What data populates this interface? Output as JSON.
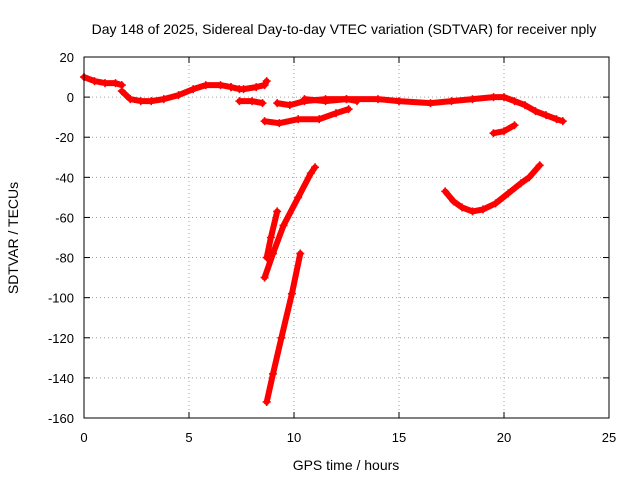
{
  "chart_data": {
    "type": "scatter",
    "title": "Day 148 of 2025, Sidereal Day-to-day VTEC variation (SDTVAR) for receiver nply",
    "xlabel": "GPS time / hours",
    "ylabel": "SDTVAR / TECUs",
    "xlim": [
      0,
      25
    ],
    "ylim": [
      -160,
      20
    ],
    "xticks": [
      0,
      5,
      10,
      15,
      20,
      25
    ],
    "yticks": [
      20,
      0,
      -20,
      -40,
      -60,
      -80,
      -100,
      -120,
      -140,
      -160
    ],
    "grid": true,
    "series_color": "#ff0000",
    "segments": [
      {
        "x": [
          0,
          0.5,
          1.0,
          1.5,
          1.8
        ],
        "y": [
          10,
          8,
          7,
          7,
          6
        ]
      },
      {
        "x": [
          1.8,
          2.2,
          2.7,
          3.2,
          3.8,
          4.5,
          5.2,
          5.8,
          6.5,
          7.0
        ],
        "y": [
          3,
          -1,
          -2,
          -2,
          -1,
          1,
          4,
          6,
          6,
          5
        ]
      },
      {
        "x": [
          7.0,
          7.4,
          7.6,
          8.2,
          8.6,
          8.7
        ],
        "y": [
          5,
          4,
          4,
          5,
          6,
          8
        ]
      },
      {
        "x": [
          7.4,
          8.0,
          8.5
        ],
        "y": [
          -2,
          -2,
          -3
        ]
      },
      {
        "x": [
          9.2,
          9.8,
          10.5,
          11.5,
          12.5,
          13.0
        ],
        "y": [
          -3,
          -4,
          -2,
          -1,
          -1,
          -2
        ]
      },
      {
        "x": [
          8.6,
          9.3,
          10.2,
          11.2,
          12.0,
          12.6
        ],
        "y": [
          -12,
          -13,
          -11,
          -11,
          -8,
          -6
        ]
      },
      {
        "x": [
          10.5,
          11.5,
          12.5,
          14,
          15,
          16.5,
          17.5,
          18.5,
          19.5,
          20.0,
          20.5,
          21.0,
          21.5,
          22.0,
          22.5,
          22.8
        ],
        "y": [
          -1,
          -2,
          -1,
          -1,
          -2,
          -3,
          -2,
          -1,
          0,
          0,
          -2,
          -4,
          -7,
          -9,
          -11,
          -12
        ]
      },
      {
        "x": [
          19.5,
          20.0,
          20.5
        ],
        "y": [
          -18,
          -17,
          -14
        ]
      },
      {
        "x": [
          8.6,
          9.0,
          9.5,
          10.2,
          10.8,
          11.0
        ],
        "y": [
          -90,
          -78,
          -64,
          -50,
          -38,
          -35
        ]
      },
      {
        "x": [
          8.7,
          8.9,
          9.2
        ],
        "y": [
          -80,
          -70,
          -57
        ]
      },
      {
        "x": [
          8.7,
          9.0,
          9.4,
          9.9,
          10.3
        ],
        "y": [
          -152,
          -138,
          -120,
          -98,
          -78
        ]
      },
      {
        "x": [
          17.2,
          17.6,
          18.0,
          18.5,
          19.0,
          19.6,
          20.2,
          20.8,
          21.2,
          21.7
        ],
        "y": [
          -47,
          -52,
          -55,
          -57,
          -56,
          -53,
          -48,
          -43,
          -40,
          -34
        ]
      }
    ]
  }
}
